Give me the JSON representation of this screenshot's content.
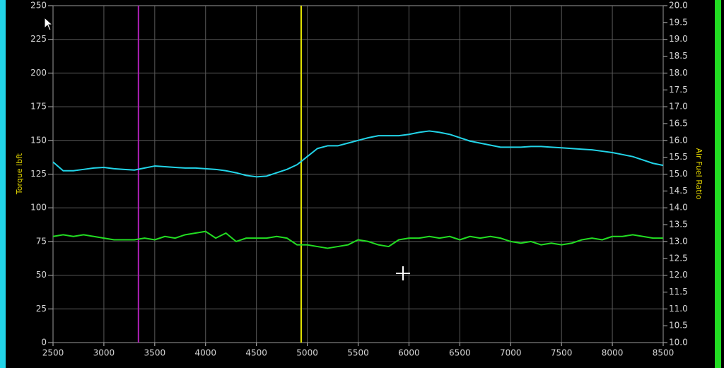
{
  "chart_data": {
    "type": "line",
    "ylabel": "Torque lbft",
    "y2label": "Air Fuel Ratio",
    "xlim": [
      2500,
      8500
    ],
    "xticks": [
      2500,
      3000,
      3500,
      4000,
      4500,
      5000,
      5500,
      6000,
      6500,
      7000,
      7500,
      8000,
      8500
    ],
    "ylim": [
      0,
      250
    ],
    "yticks": [
      0,
      25,
      50,
      75,
      100,
      125,
      150,
      175,
      200,
      225,
      250
    ],
    "y2lim": [
      10,
      20
    ],
    "y2ticks": [
      {
        "value": 10,
        "label": "10.0"
      },
      10.5,
      {
        "value": 11,
        "label": "11.0"
      },
      11.5,
      {
        "value": 12,
        "label": "12.0"
      },
      12.5,
      {
        "value": 13,
        "label": "13.0"
      },
      13.5,
      {
        "value": 14,
        "label": "14.0"
      },
      14.5,
      {
        "value": 15,
        "label": "15.0"
      },
      15.5,
      {
        "value": 16,
        "label": "16.0"
      },
      16.5,
      {
        "value": 17,
        "label": "17.0"
      },
      17.5,
      {
        "value": 18,
        "label": "18.0"
      },
      18.5,
      {
        "value": 19,
        "label": "19.0"
      },
      19.5,
      {
        "value": 20,
        "label": "20.0"
      }
    ],
    "grid": true,
    "x": [
      2500,
      2600,
      2700,
      2800,
      2900,
      3000,
      3100,
      3200,
      3300,
      3400,
      3500,
      3600,
      3700,
      3800,
      3900,
      4000,
      4100,
      4200,
      4300,
      4400,
      4500,
      4600,
      4700,
      4800,
      4900,
      5000,
      5100,
      5200,
      5300,
      5400,
      5500,
      5600,
      5700,
      5800,
      5900,
      6000,
      6100,
      6200,
      6300,
      6400,
      6500,
      6600,
      6700,
      6800,
      6900,
      7000,
      7100,
      7200,
      7300,
      7400,
      7500,
      7600,
      7700,
      7800,
      7900,
      8000,
      8100,
      8200,
      8300,
      8400,
      8500
    ],
    "series": [
      {
        "color": "#22d4e8",
        "axis": "y",
        "values": [
          134,
          127.5,
          127.5,
          128.5,
          129.5,
          130,
          129,
          128.5,
          128,
          129.5,
          131,
          130.5,
          130,
          129.5,
          129.5,
          129,
          128.5,
          127.5,
          126,
          124,
          123,
          123.5,
          126,
          128.5,
          132,
          138,
          144,
          146,
          146,
          148,
          150,
          152,
          153.5,
          153.5,
          153.5,
          154.5,
          156,
          157,
          156,
          154.5,
          152,
          149.5,
          148,
          146.5,
          145,
          145,
          145,
          145.5,
          145.5,
          145,
          144.5,
          144,
          143.5,
          143,
          142,
          141,
          139.5,
          138,
          135.5,
          133,
          131.5
        ]
      },
      {
        "color": "#22dd22",
        "axis": "y2",
        "values": [
          13.15,
          13.2,
          13.15,
          13.2,
          13.15,
          13.1,
          13.05,
          13.05,
          13.05,
          13.1,
          13.05,
          13.15,
          13.1,
          13.2,
          13.25,
          13.3,
          13.1,
          13.25,
          13.0,
          13.1,
          13.1,
          13.1,
          13.15,
          13.1,
          12.9,
          12.9,
          12.85,
          12.8,
          12.85,
          12.9,
          13.05,
          13.0,
          12.9,
          12.85,
          13.05,
          13.1,
          13.1,
          13.15,
          13.1,
          13.15,
          13.05,
          13.15,
          13.1,
          13.15,
          13.1,
          13.0,
          12.95,
          13.0,
          12.9,
          12.95,
          12.9,
          12.95,
          13.05,
          13.1,
          13.05,
          13.15,
          13.15,
          13.2,
          13.15,
          13.1,
          13.1
        ]
      }
    ],
    "cursors": [
      {
        "x": 3340,
        "color": "#b020b8"
      },
      {
        "x": 4940,
        "color": "#e8e800"
      }
    ]
  }
}
